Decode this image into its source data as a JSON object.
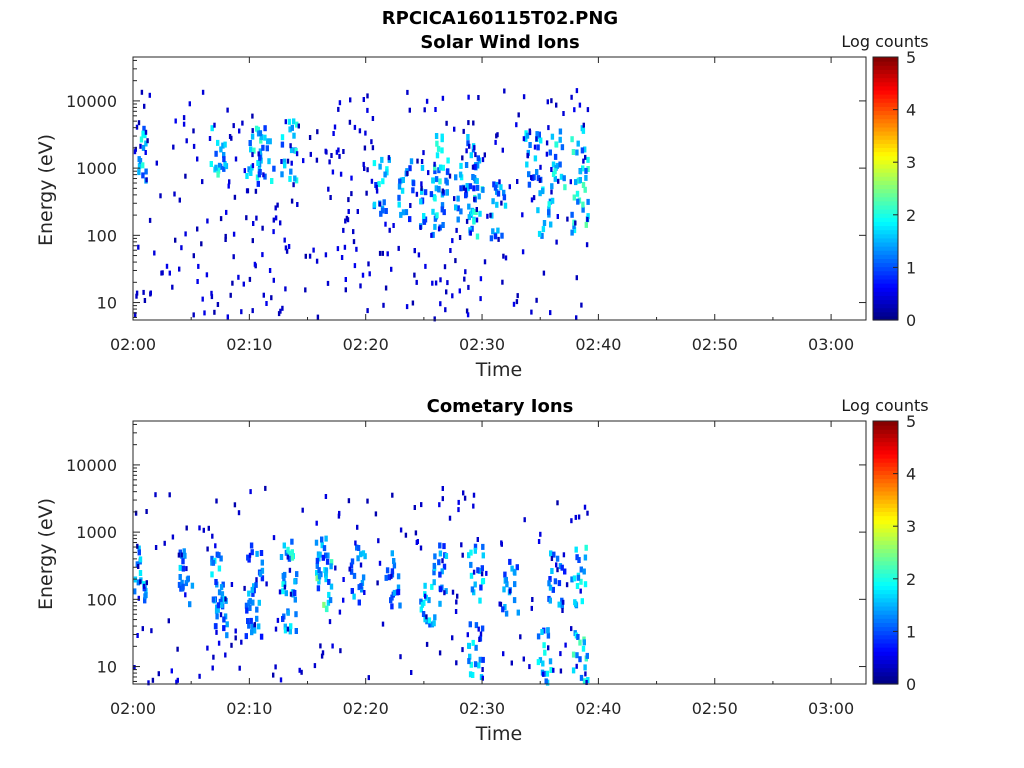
{
  "figure_title": "RPCICA160115T02.PNG",
  "chart_data": [
    {
      "type": "heatmap",
      "title": "Solar Wind Ions",
      "xlabel": "Time",
      "ylabel": "Energy (eV)",
      "x_range": [
        "02:00",
        "03:03"
      ],
      "x_ticks": [
        "02:00",
        "02:10",
        "02:20",
        "02:30",
        "02:40",
        "02:50",
        "03:00"
      ],
      "y_scale": "log",
      "y_range": [
        5.5,
        45000
      ],
      "y_ticks": [
        10,
        100,
        1000,
        10000
      ],
      "y_tick_labels": [
        "10",
        "100",
        "1000",
        "10000"
      ],
      "colorbar": {
        "label": "Log counts",
        "range": [
          0,
          5
        ],
        "ticks": [
          "0",
          "1",
          "2",
          "3",
          "4",
          "5"
        ],
        "colormap": "jet"
      },
      "data_extent": [
        "02:00",
        "02:39"
      ],
      "clusters": [
        {
          "t": "02:00",
          "e": 1800,
          "level": 2.0
        },
        {
          "t": "02:07",
          "e": 2000,
          "level": 2.0
        },
        {
          "t": "02:10",
          "e": 1800,
          "level": 2.0
        },
        {
          "t": "02:11",
          "e": 1600,
          "level": 1.8
        },
        {
          "t": "02:13",
          "e": 2000,
          "level": 2.0
        },
        {
          "t": "02:21",
          "e": 600,
          "level": 1.8
        },
        {
          "t": "02:23",
          "e": 500,
          "level": 1.6
        },
        {
          "t": "02:25",
          "e": 400,
          "level": 1.7
        },
        {
          "t": "02:26",
          "e": 1500,
          "level": 2.0
        },
        {
          "t": "02:26",
          "e": 300,
          "level": 1.8
        },
        {
          "t": "02:28",
          "e": 500,
          "level": 1.8
        },
        {
          "t": "02:29",
          "e": 300,
          "level": 2.2
        },
        {
          "t": "02:29",
          "e": 1500,
          "level": 1.6
        },
        {
          "t": "02:31",
          "e": 250,
          "level": 1.6
        },
        {
          "t": "02:34",
          "e": 1500,
          "level": 1.8
        },
        {
          "t": "02:35",
          "e": 300,
          "level": 1.8
        },
        {
          "t": "02:36",
          "e": 1400,
          "level": 2.0
        },
        {
          "t": "02:38",
          "e": 300,
          "level": 2.3
        },
        {
          "t": "02:38",
          "e": 1800,
          "level": 2.0
        }
      ]
    },
    {
      "type": "heatmap",
      "title": "Cometary Ions",
      "xlabel": "Time",
      "ylabel": "Energy (eV)",
      "x_range": [
        "02:00",
        "03:03"
      ],
      "x_ticks": [
        "02:00",
        "02:10",
        "02:20",
        "02:30",
        "02:40",
        "02:50",
        "03:00"
      ],
      "y_scale": "log",
      "y_range": [
        5.5,
        45000
      ],
      "y_ticks": [
        10,
        100,
        1000,
        10000
      ],
      "y_tick_labels": [
        "10",
        "100",
        "1000",
        "10000"
      ],
      "colorbar": {
        "label": "Log counts",
        "range": [
          0,
          5
        ],
        "ticks": [
          "0",
          "1",
          "2",
          "3",
          "4",
          "5"
        ],
        "colormap": "jet"
      },
      "data_extent": [
        "02:00",
        "02:39"
      ],
      "clusters": [
        {
          "t": "02:00",
          "e": 250,
          "level": 2.0
        },
        {
          "t": "02:04",
          "e": 250,
          "level": 1.6
        },
        {
          "t": "02:07",
          "e": 200,
          "level": 1.8
        },
        {
          "t": "02:07",
          "e": 80,
          "level": 1.6
        },
        {
          "t": "02:10",
          "e": 250,
          "level": 1.6
        },
        {
          "t": "02:10",
          "e": 80,
          "level": 1.5
        },
        {
          "t": "02:13",
          "e": 300,
          "level": 2.0
        },
        {
          "t": "02:13",
          "e": 100,
          "level": 1.8
        },
        {
          "t": "02:16",
          "e": 200,
          "level": 2.3
        },
        {
          "t": "02:16",
          "e": 400,
          "level": 1.6
        },
        {
          "t": "02:19",
          "e": 250,
          "level": 1.5
        },
        {
          "t": "02:22",
          "e": 200,
          "level": 1.5
        },
        {
          "t": "02:25",
          "e": 100,
          "level": 1.8
        },
        {
          "t": "02:26",
          "e": 250,
          "level": 1.6
        },
        {
          "t": "02:29",
          "e": 250,
          "level": 1.8
        },
        {
          "t": "02:29",
          "e": 20,
          "level": 1.8
        },
        {
          "t": "02:32",
          "e": 150,
          "level": 1.5
        },
        {
          "t": "02:35",
          "e": 15,
          "level": 1.8
        },
        {
          "t": "02:36",
          "e": 250,
          "level": 1.6
        },
        {
          "t": "02:38",
          "e": 15,
          "level": 2.2
        },
        {
          "t": "02:38",
          "e": 250,
          "level": 2.0
        }
      ]
    }
  ]
}
